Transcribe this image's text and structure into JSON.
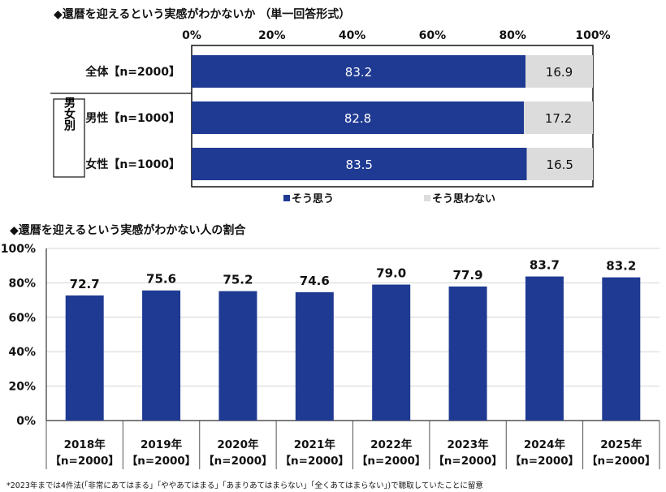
{
  "chart_data": [
    {
      "type": "bar",
      "orientation": "horizontal-stacked",
      "title": "◆還暦を迎えるという実感がわかないか （単一回答形式）",
      "x_ticks": [
        "0%",
        "20%",
        "40%",
        "60%",
        "80%",
        "100%"
      ],
      "xlim": [
        0,
        100
      ],
      "group_label": "男女別",
      "categories": [
        "全体【n=2000】",
        "男性【n=1000】",
        "女性【n=1000】"
      ],
      "series": [
        {
          "name": "そう思う",
          "color": "#1f3a93",
          "values": [
            83.2,
            82.8,
            83.5
          ]
        },
        {
          "name": "そう思わない",
          "color": "#dcdcdc",
          "values": [
            16.9,
            17.2,
            16.5
          ]
        }
      ],
      "data_labels": [
        [
          "83.2",
          "82.8",
          "83.5"
        ],
        [
          "16.9",
          "17.2",
          "16.5"
        ]
      ],
      "legend": "bottom"
    },
    {
      "type": "bar",
      "title": "◆還暦を迎えるという実感がわかない人の割合",
      "categories": [
        "2018年",
        "2019年",
        "2020年",
        "2021年",
        "2022年",
        "2023年",
        "2024年",
        "2025年"
      ],
      "category_n": "【n=2000】",
      "values": [
        72.7,
        75.6,
        75.2,
        74.6,
        79.0,
        77.9,
        83.7,
        83.2
      ],
      "data_labels": [
        "72.7",
        "75.6",
        "75.2",
        "74.6",
        "79.0",
        "77.9",
        "83.7",
        "83.2"
      ],
      "y_ticks": [
        "0%",
        "20%",
        "40%",
        "60%",
        "80%",
        "100%"
      ],
      "ylim": [
        0,
        100
      ],
      "color": "#1f3a93"
    }
  ],
  "footnote": "*2023年までは4件法(「非常にあてはまる」「ややあてはまる」「あまりあてはまらない」「全くあてはまらない」)で聴取していたことに留意"
}
